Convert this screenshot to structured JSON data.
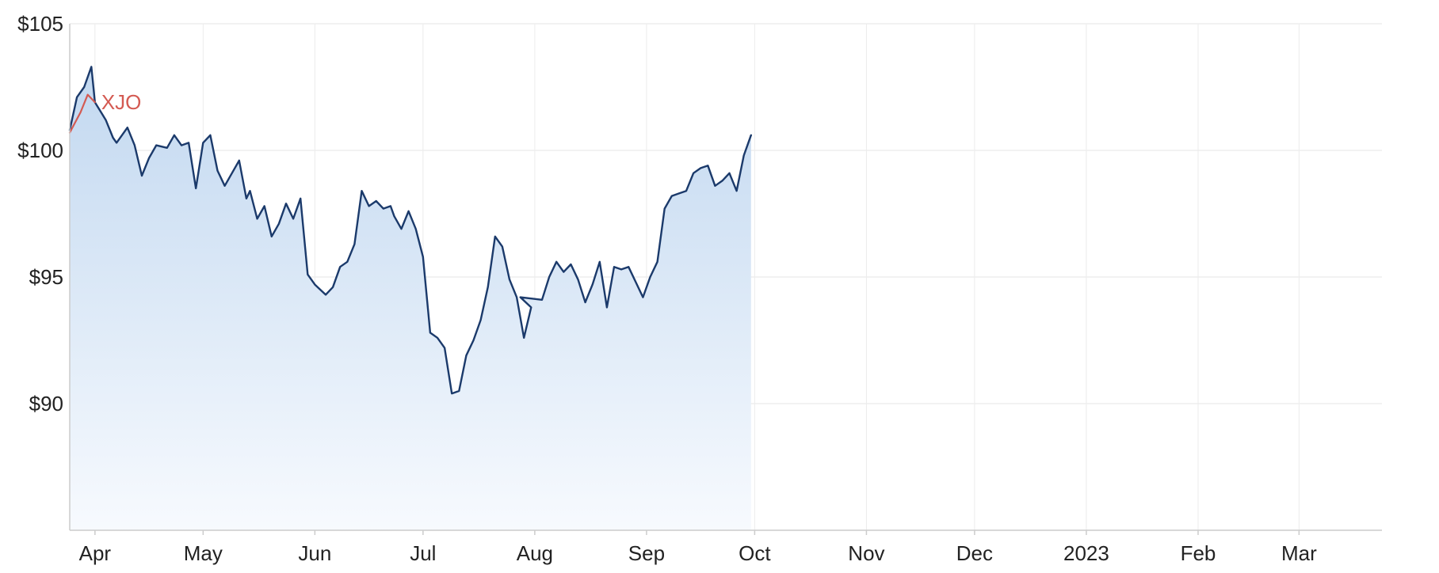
{
  "chart_data": {
    "type": "line",
    "title": "",
    "xlabel": "",
    "ylabel": "",
    "x_axis": {
      "start": "2022-03-25",
      "end": "2023-03-24",
      "ticks": [
        {
          "date": "2022-04-01",
          "label": "Apr"
        },
        {
          "date": "2022-05-01",
          "label": "May"
        },
        {
          "date": "2022-06-01",
          "label": "Jun"
        },
        {
          "date": "2022-07-01",
          "label": "Jul"
        },
        {
          "date": "2022-08-01",
          "label": "Aug"
        },
        {
          "date": "2022-09-01",
          "label": "Sep"
        },
        {
          "date": "2022-10-01",
          "label": "Oct"
        },
        {
          "date": "2022-11-01",
          "label": "Nov"
        },
        {
          "date": "2022-12-01",
          "label": "Dec"
        },
        {
          "date": "2023-01-01",
          "label": "2023"
        },
        {
          "date": "2023-02-01",
          "label": "Feb"
        },
        {
          "date": "2023-03-01",
          "label": "Mar"
        }
      ]
    },
    "y_axis": {
      "min": 85,
      "max": 105,
      "ticks": [
        {
          "value": 90,
          "label": "$90"
        },
        {
          "value": 95,
          "label": "$95"
        },
        {
          "value": 100,
          "label": "$100"
        },
        {
          "value": 105,
          "label": "$105"
        }
      ]
    },
    "grid": true,
    "legend": "end-of-line label",
    "series": [
      {
        "name": "",
        "color": "#1b3a6b",
        "fill_top": "#c2d8f0",
        "fill_bottom": "#f7fafe",
        "area": true,
        "points": [
          [
            "2022-03-25",
            100.8
          ],
          [
            "2022-03-27",
            102.1
          ],
          [
            "2022-03-29",
            102.5
          ],
          [
            "2022-03-31",
            103.3
          ],
          [
            "2022-04-01",
            101.9
          ],
          [
            "2022-04-04",
            101.2
          ],
          [
            "2022-04-06",
            100.5
          ],
          [
            "2022-04-07",
            100.3
          ],
          [
            "2022-04-10",
            100.9
          ],
          [
            "2022-04-12",
            100.2
          ],
          [
            "2022-04-14",
            99.0
          ],
          [
            "2022-04-16",
            99.7
          ],
          [
            "2022-04-18",
            100.2
          ],
          [
            "2022-04-21",
            100.1
          ],
          [
            "2022-04-23",
            100.6
          ],
          [
            "2022-04-25",
            100.2
          ],
          [
            "2022-04-27",
            100.3
          ],
          [
            "2022-04-29",
            98.5
          ],
          [
            "2022-05-01",
            100.3
          ],
          [
            "2022-05-03",
            100.6
          ],
          [
            "2022-05-05",
            99.2
          ],
          [
            "2022-05-07",
            98.6
          ],
          [
            "2022-05-09",
            99.1
          ],
          [
            "2022-05-11",
            99.6
          ],
          [
            "2022-05-13",
            98.1
          ],
          [
            "2022-05-14",
            98.4
          ],
          [
            "2022-05-16",
            97.3
          ],
          [
            "2022-05-18",
            97.8
          ],
          [
            "2022-05-20",
            96.6
          ],
          [
            "2022-05-22",
            97.1
          ],
          [
            "2022-05-24",
            97.9
          ],
          [
            "2022-05-26",
            97.3
          ],
          [
            "2022-05-28",
            98.1
          ],
          [
            "2022-05-30",
            95.1
          ],
          [
            "2022-06-01",
            94.7
          ],
          [
            "2022-06-04",
            94.3
          ],
          [
            "2022-06-06",
            94.6
          ],
          [
            "2022-06-08",
            95.4
          ],
          [
            "2022-06-10",
            95.6
          ],
          [
            "2022-06-12",
            96.3
          ],
          [
            "2022-06-14",
            98.4
          ],
          [
            "2022-06-16",
            97.8
          ],
          [
            "2022-06-18",
            98.0
          ],
          [
            "2022-06-20",
            97.7
          ],
          [
            "2022-06-22",
            97.8
          ],
          [
            "2022-06-23",
            97.4
          ],
          [
            "2022-06-25",
            96.9
          ],
          [
            "2022-06-27",
            97.6
          ],
          [
            "2022-06-29",
            96.9
          ],
          [
            "2022-07-01",
            95.8
          ],
          [
            "2022-07-03",
            92.8
          ],
          [
            "2022-07-05",
            92.6
          ],
          [
            "2022-07-07",
            92.2
          ],
          [
            "2022-07-09",
            90.4
          ],
          [
            "2022-07-11",
            90.5
          ],
          [
            "2022-07-13",
            91.9
          ],
          [
            "2022-07-15",
            92.5
          ],
          [
            "2022-07-17",
            93.3
          ],
          [
            "2022-07-19",
            94.6
          ],
          [
            "2022-07-21",
            96.6
          ],
          [
            "2022-07-23",
            96.2
          ],
          [
            "2022-07-25",
            94.9
          ],
          [
            "2022-07-27",
            94.2
          ],
          [
            "2022-07-29",
            92.6
          ],
          [
            "2022-07-31",
            93.8
          ],
          [
            "2022-07-28",
            94.2
          ],
          [
            "2022-08-03",
            94.1
          ],
          [
            "2022-08-05",
            95.0
          ],
          [
            "2022-08-07",
            95.6
          ],
          [
            "2022-08-09",
            95.2
          ],
          [
            "2022-08-11",
            95.5
          ],
          [
            "2022-08-13",
            94.9
          ],
          [
            "2022-08-15",
            94.0
          ],
          [
            "2022-08-17",
            94.7
          ],
          [
            "2022-08-19",
            95.6
          ],
          [
            "2022-08-21",
            93.8
          ],
          [
            "2022-08-23",
            95.4
          ],
          [
            "2022-08-25",
            95.3
          ],
          [
            "2022-08-27",
            95.4
          ],
          [
            "2022-08-29",
            94.8
          ],
          [
            "2022-08-31",
            94.2
          ],
          [
            "2022-09-02",
            95.0
          ],
          [
            "2022-09-04",
            95.6
          ],
          [
            "2022-09-06",
            97.7
          ],
          [
            "2022-09-08",
            98.2
          ],
          [
            "2022-09-10",
            98.3
          ],
          [
            "2022-09-12",
            98.4
          ],
          [
            "2022-09-14",
            99.1
          ],
          [
            "2022-09-16",
            99.3
          ],
          [
            "2022-09-18",
            99.4
          ],
          [
            "2022-09-20",
            98.6
          ],
          [
            "2022-09-22",
            98.8
          ],
          [
            "2022-09-24",
            99.1
          ],
          [
            "2022-09-26",
            98.4
          ],
          [
            "2022-09-28",
            99.8
          ],
          [
            "2022-09-30",
            100.6
          ]
        ]
      },
      {
        "name": "XJO",
        "color": "#d45a52",
        "area": false,
        "points": [
          [
            "2022-03-25",
            100.7
          ],
          [
            "2022-03-28",
            101.5
          ],
          [
            "2022-03-30",
            102.2
          ],
          [
            "2022-04-01",
            101.9
          ]
        ]
      }
    ]
  }
}
